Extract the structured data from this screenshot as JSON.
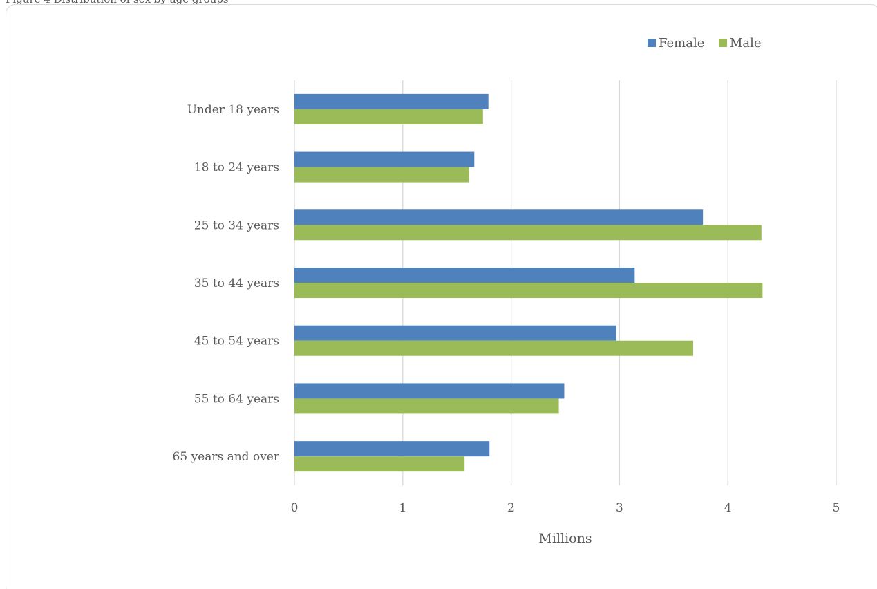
{
  "caption": "Figure 4 Distribution of sex by age groups",
  "chart_data": {
    "type": "bar",
    "orientation": "horizontal",
    "categories": [
      "Under 18 years",
      "18 to 24 years",
      "25 to 34 years",
      "35 to 44 years",
      "45 to 54 years",
      "55 to 64 years",
      "65 years and over"
    ],
    "series": [
      {
        "name": "Female",
        "color": "#4f81bd",
        "values": [
          1.79,
          1.66,
          3.77,
          3.14,
          2.97,
          2.49,
          1.8
        ]
      },
      {
        "name": "Male",
        "color": "#9bbb59",
        "values": [
          1.74,
          1.61,
          4.31,
          4.32,
          3.68,
          2.44,
          1.57
        ]
      }
    ],
    "xlabel": "Millions",
    "ylabel": "",
    "xlim": [
      0,
      5
    ],
    "xticks": [
      "0",
      "1",
      "2",
      "3",
      "4",
      "5"
    ],
    "grid": true,
    "legend_position": "top-right"
  }
}
